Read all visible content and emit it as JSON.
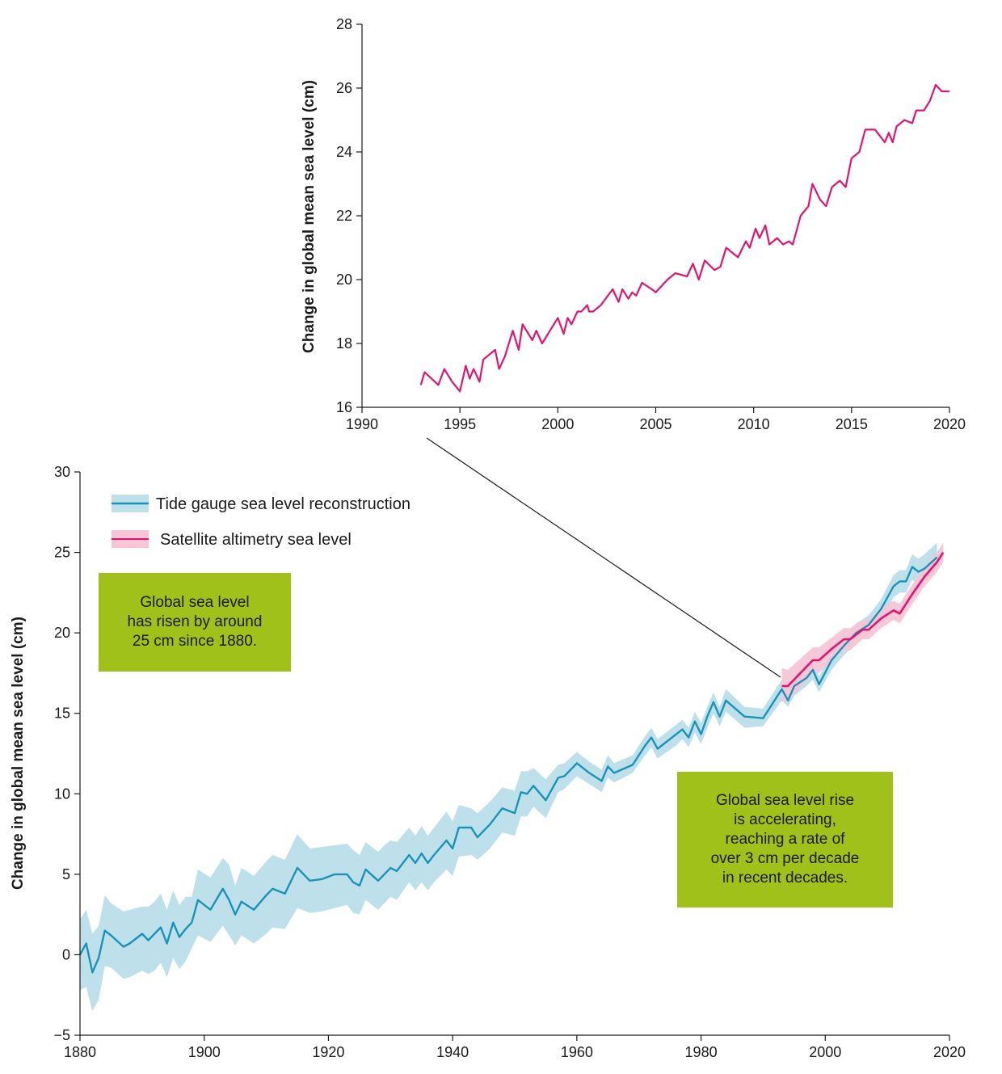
{
  "colors": {
    "tide_line": "#1a93b8",
    "tide_band": "#bde0ea",
    "sat_line": "#e0156f",
    "sat_band": "#f7c5d6",
    "callout_bg": "#a0c11a",
    "axis": "#1a1a1a"
  },
  "annotations": {
    "box1": "Global sea level\nhas risen by around\n25 cm since 1880.",
    "box2": "Global sea level rise\nis accelerating,\nreaching a rate of\nover 3 cm per decade\nin recent decades."
  },
  "chart_data": [
    {
      "type": "line",
      "ylabel": "Change in global mean sea level (cm)",
      "xlim": [
        1990,
        2020
      ],
      "ylim": [
        16,
        28
      ],
      "xticks": [
        "1990",
        "1995",
        "2000",
        "2005",
        "2010",
        "2015",
        "2020"
      ],
      "yticks": [
        "16",
        "18",
        "20",
        "22",
        "24",
        "26",
        "28"
      ],
      "series": [
        {
          "x": [
            1993.0,
            1993.2,
            1993.9,
            1994.2,
            1994.6,
            1995.0,
            1995.3,
            1995.5,
            1995.7,
            1996.0,
            1996.2,
            1996.8,
            1997.0,
            1997.3,
            1997.7,
            1998.0,
            1998.2,
            1998.7,
            1998.9,
            1999.2,
            1999.6,
            2000.0,
            2000.3,
            2000.5,
            2000.7,
            2001.0,
            2001.2,
            2001.5,
            2001.6,
            2001.8,
            2002.2,
            2002.8,
            2003.1,
            2003.3,
            2003.6,
            2003.8,
            2004.0,
            2004.3,
            2004.8,
            2005.0,
            2005.6,
            2006.0,
            2006.6,
            2006.9,
            2007.2,
            2007.5,
            2008.0,
            2008.3,
            2008.6,
            2009.2,
            2009.6,
            2009.8,
            2010.1,
            2010.3,
            2010.6,
            2010.8,
            2011.2,
            2011.5,
            2011.8,
            2012.0,
            2012.4,
            2012.8,
            2013.0,
            2013.4,
            2013.7,
            2014.0,
            2014.4,
            2014.7,
            2015.0,
            2015.4,
            2015.7,
            2016.2,
            2016.7,
            2016.9,
            2017.1,
            2017.3,
            2017.7,
            2018.1,
            2018.3,
            2018.7,
            2019.0,
            2019.3,
            2019.6,
            2019.8,
            2020.0
          ],
          "y": [
            16.7,
            17.1,
            16.7,
            17.2,
            16.8,
            16.5,
            17.3,
            16.9,
            17.2,
            16.8,
            17.5,
            17.8,
            17.2,
            17.6,
            18.4,
            17.8,
            18.6,
            18.1,
            18.4,
            18.0,
            18.4,
            18.8,
            18.3,
            18.8,
            18.6,
            19.0,
            19.0,
            19.2,
            19.0,
            19.0,
            19.2,
            19.7,
            19.3,
            19.7,
            19.4,
            19.6,
            19.5,
            19.9,
            19.7,
            19.6,
            20.0,
            20.2,
            20.1,
            20.5,
            20.0,
            20.6,
            20.3,
            20.4,
            21.0,
            20.7,
            21.2,
            21.0,
            21.6,
            21.3,
            21.7,
            21.1,
            21.3,
            21.1,
            21.2,
            21.1,
            22.0,
            22.3,
            23.0,
            22.5,
            22.3,
            22.9,
            23.1,
            22.9,
            23.8,
            24.0,
            24.7,
            24.7,
            24.3,
            24.6,
            24.3,
            24.8,
            25.0,
            24.9,
            25.3,
            25.3,
            25.6,
            26.1,
            25.9,
            25.9,
            25.9
          ]
        }
      ]
    },
    {
      "type": "line",
      "ylabel": "Change in global mean sea level (cm)",
      "xlim": [
        1880,
        2020
      ],
      "ylim": [
        -5,
        30
      ],
      "xticks": [
        "1880",
        "1900",
        "1920",
        "1940",
        "1960",
        "1980",
        "2000",
        "2020"
      ],
      "yticks": [
        "−5",
        "0",
        "5",
        "10",
        "15",
        "20",
        "25",
        "30"
      ],
      "series": [
        {
          "name": "Tide gauge sea level reconstruction",
          "x": [
            1880,
            1881,
            1882,
            1883,
            1884,
            1885,
            1887,
            1888,
            1890,
            1891,
            1892,
            1893,
            1894,
            1895,
            1896,
            1897,
            1898,
            1899,
            1901,
            1903,
            1904,
            1905,
            1906,
            1908,
            1910,
            1911,
            1913,
            1915,
            1917,
            1919,
            1921,
            1923,
            1924,
            1925,
            1926,
            1928,
            1929,
            1930,
            1931,
            1933,
            1934,
            1935,
            1936,
            1937,
            1939,
            1940,
            1941,
            1943,
            1944,
            1946,
            1948,
            1950,
            1951,
            1952,
            1953,
            1955,
            1957,
            1958,
            1960,
            1962,
            1964,
            1965,
            1966,
            1969,
            1971,
            1972,
            1973,
            1976,
            1977,
            1978,
            1979,
            1980,
            1981,
            1982,
            1983,
            1984,
            1987,
            1990,
            1993,
            1994,
            1995,
            1997,
            1998,
            1999,
            2001,
            2003,
            2005,
            2007,
            2009,
            2011,
            2012,
            2013,
            2014,
            2015,
            2016,
            2018
          ],
          "y": [
            0.0,
            0.7,
            -1.1,
            -0.2,
            1.5,
            1.2,
            0.5,
            0.7,
            1.3,
            0.9,
            1.3,
            1.7,
            0.7,
            2.0,
            1.1,
            1.6,
            2.0,
            3.4,
            2.8,
            4.1,
            3.4,
            2.5,
            3.3,
            2.8,
            3.7,
            4.1,
            3.8,
            5.4,
            4.6,
            4.7,
            5.0,
            5.0,
            4.5,
            4.3,
            5.3,
            4.6,
            5.0,
            5.4,
            5.2,
            6.2,
            5.7,
            6.3,
            5.7,
            6.2,
            7.1,
            6.6,
            7.9,
            7.9,
            7.3,
            8.1,
            9.1,
            8.8,
            10.1,
            10.0,
            10.5,
            9.6,
            11.0,
            11.1,
            11.9,
            11.3,
            10.8,
            11.7,
            11.3,
            11.8,
            13.0,
            13.5,
            12.8,
            13.7,
            14.0,
            13.5,
            14.5,
            13.7,
            14.8,
            15.7,
            14.8,
            15.8,
            14.8,
            14.7,
            16.5,
            15.8,
            16.7,
            17.2,
            17.7,
            16.8,
            18.3,
            19.2,
            20.0,
            20.5,
            21.5,
            22.9,
            23.2,
            23.2,
            24.1,
            23.8,
            24.0,
            24.7
          ],
          "lower": [
            -2.2,
            -2.0,
            -3.5,
            -2.8,
            -0.7,
            -0.8,
            -1.5,
            -1.4,
            -1.0,
            -1.2,
            -1.0,
            -0.5,
            -1.4,
            -0.2,
            -0.9,
            -0.4,
            0.4,
            1.2,
            0.8,
            1.8,
            1.2,
            0.6,
            1.2,
            0.7,
            1.3,
            1.7,
            1.6,
            2.9,
            2.6,
            2.7,
            2.9,
            3.1,
            2.6,
            2.5,
            3.4,
            2.8,
            3.2,
            3.6,
            3.4,
            4.5,
            4.0,
            4.5,
            4.0,
            4.5,
            5.3,
            4.9,
            6.1,
            6.2,
            5.9,
            6.6,
            7.6,
            7.4,
            8.6,
            8.6,
            9.2,
            8.5,
            10.1,
            10.3,
            11.1,
            10.6,
            10.1,
            11.0,
            10.7,
            11.3,
            12.4,
            12.9,
            12.2,
            13.0,
            13.4,
            12.9,
            13.8,
            13.1,
            14.1,
            15.0,
            14.2,
            15.1,
            14.1,
            14.2,
            15.8,
            15.4,
            16.1,
            16.7,
            17.1,
            16.3,
            17.7,
            18.6,
            19.4,
            19.9,
            20.8,
            22.2,
            22.5,
            22.5,
            23.3,
            23.0,
            23.2,
            23.9
          ],
          "upper": [
            2.2,
            2.8,
            1.3,
            1.8,
            3.7,
            3.2,
            2.7,
            2.8,
            3.0,
            3.0,
            3.3,
            3.8,
            2.8,
            4.0,
            3.1,
            3.6,
            3.6,
            5.3,
            4.8,
            6.0,
            5.6,
            4.3,
            5.4,
            4.9,
            5.8,
            6.2,
            5.9,
            7.5,
            6.6,
            6.7,
            6.8,
            6.9,
            6.5,
            6.2,
            7.0,
            6.4,
            6.8,
            7.1,
            7.0,
            7.9,
            7.4,
            8.0,
            7.4,
            7.9,
            8.9,
            8.3,
            9.3,
            9.1,
            8.8,
            9.5,
            10.4,
            10.2,
            11.4,
            11.4,
            11.6,
            10.9,
            11.8,
            11.9,
            12.6,
            12.0,
            11.5,
            12.4,
            11.9,
            12.4,
            13.6,
            14.1,
            13.4,
            14.3,
            14.6,
            14.1,
            15.1,
            14.4,
            15.4,
            16.3,
            15.4,
            16.5,
            15.4,
            15.3,
            17.1,
            16.2,
            17.3,
            17.8,
            18.3,
            17.3,
            18.8,
            19.7,
            20.6,
            21.1,
            22.1,
            23.6,
            23.9,
            23.9,
            24.9,
            24.6,
            24.9,
            25.6
          ]
        },
        {
          "name": "Satellite altimetry sea level",
          "x": [
            1993,
            1994,
            1996,
            1998,
            1999,
            2001,
            2003,
            2004,
            2006,
            2007,
            2009,
            2011,
            2012,
            2014,
            2016,
            2018,
            2019
          ],
          "y": [
            16.7,
            16.7,
            17.5,
            18.3,
            18.3,
            19.0,
            19.6,
            19.6,
            20.2,
            20.2,
            20.9,
            21.4,
            21.2,
            22.4,
            23.5,
            24.4,
            25.0
          ],
          "lower": [
            15.7,
            15.8,
            16.6,
            17.5,
            17.5,
            18.3,
            18.9,
            18.9,
            19.6,
            19.6,
            20.3,
            20.8,
            20.6,
            21.8,
            22.9,
            23.8,
            24.4
          ],
          "upper": [
            17.8,
            17.7,
            18.4,
            19.1,
            19.1,
            19.7,
            20.3,
            20.3,
            20.8,
            20.8,
            21.5,
            22.0,
            21.8,
            23.0,
            24.1,
            25.0,
            25.6
          ]
        }
      ],
      "legend": "top-left"
    }
  ]
}
